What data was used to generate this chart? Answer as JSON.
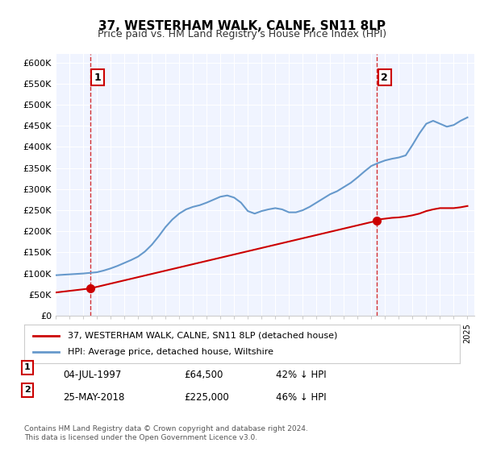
{
  "title": "37, WESTERHAM WALK, CALNE, SN11 8LP",
  "subtitle": "Price paid vs. HM Land Registry's House Price Index (HPI)",
  "ylabel_ticks": [
    "£0",
    "£50K",
    "£100K",
    "£150K",
    "£200K",
    "£250K",
    "£300K",
    "£350K",
    "£400K",
    "£450K",
    "£500K",
    "£550K",
    "£600K"
  ],
  "ytick_values": [
    0,
    50000,
    100000,
    150000,
    200000,
    250000,
    300000,
    350000,
    400000,
    450000,
    500000,
    550000,
    600000
  ],
  "ylim": [
    0,
    620000
  ],
  "xlim_start": 1995.0,
  "xlim_end": 2025.5,
  "purchase1_x": 1997.5,
  "purchase1_y": 64500,
  "purchase1_label": "1",
  "purchase1_date": "04-JUL-1997",
  "purchase1_price": "£64,500",
  "purchase1_hpi": "42% ↓ HPI",
  "purchase2_x": 2018.4,
  "purchase2_y": 225000,
  "purchase2_label": "2",
  "purchase2_date": "25-MAY-2018",
  "purchase2_price": "£225,000",
  "purchase2_hpi": "46% ↓ HPI",
  "line_color_property": "#cc0000",
  "line_color_hpi": "#6699cc",
  "dot_color": "#cc0000",
  "vline_color": "#cc0000",
  "bg_color": "#f0f4ff",
  "legend_text_1": "37, WESTERHAM WALK, CALNE, SN11 8LP (detached house)",
  "legend_text_2": "HPI: Average price, detached house, Wiltshire",
  "footer_text": "Contains HM Land Registry data © Crown copyright and database right 2024.\nThis data is licensed under the Open Government Licence v3.0.",
  "hpi_x": [
    1995,
    1995.5,
    1996,
    1996.5,
    1997,
    1997.5,
    1998,
    1998.5,
    1999,
    1999.5,
    2000,
    2000.5,
    2001,
    2001.5,
    2002,
    2002.5,
    2003,
    2003.5,
    2004,
    2004.5,
    2005,
    2005.5,
    2006,
    2006.5,
    2007,
    2007.5,
    2008,
    2008.5,
    2009,
    2009.5,
    2010,
    2010.5,
    2011,
    2011.5,
    2012,
    2012.5,
    2013,
    2013.5,
    2014,
    2014.5,
    2015,
    2015.5,
    2016,
    2016.5,
    2017,
    2017.5,
    2018,
    2018.5,
    2019,
    2019.5,
    2020,
    2020.5,
    2021,
    2021.5,
    2022,
    2022.5,
    2023,
    2023.5,
    2024,
    2024.5,
    2025
  ],
  "hpi_y": [
    96000,
    97000,
    98000,
    99000,
    100000,
    101500,
    103000,
    107000,
    112000,
    118000,
    125000,
    132000,
    140000,
    152000,
    168000,
    188000,
    210000,
    228000,
    242000,
    252000,
    258000,
    262000,
    268000,
    275000,
    282000,
    285000,
    280000,
    268000,
    248000,
    242000,
    248000,
    252000,
    255000,
    252000,
    245000,
    245000,
    250000,
    258000,
    268000,
    278000,
    288000,
    295000,
    305000,
    315000,
    328000,
    342000,
    355000,
    362000,
    368000,
    372000,
    375000,
    380000,
    405000,
    432000,
    455000,
    462000,
    455000,
    448000,
    452000,
    462000,
    470000
  ],
  "property_x": [
    1995,
    1997.5,
    2018.4,
    2018.5,
    2019,
    2019.5,
    2020,
    2020.5,
    2021,
    2021.5,
    2022,
    2022.5,
    2023,
    2023.5,
    2024,
    2024.5,
    2025
  ],
  "property_y": [
    55000,
    64500,
    225000,
    228000,
    230000,
    232000,
    233000,
    235000,
    238000,
    242000,
    248000,
    252000,
    255000,
    255000,
    255000,
    257000,
    260000
  ]
}
